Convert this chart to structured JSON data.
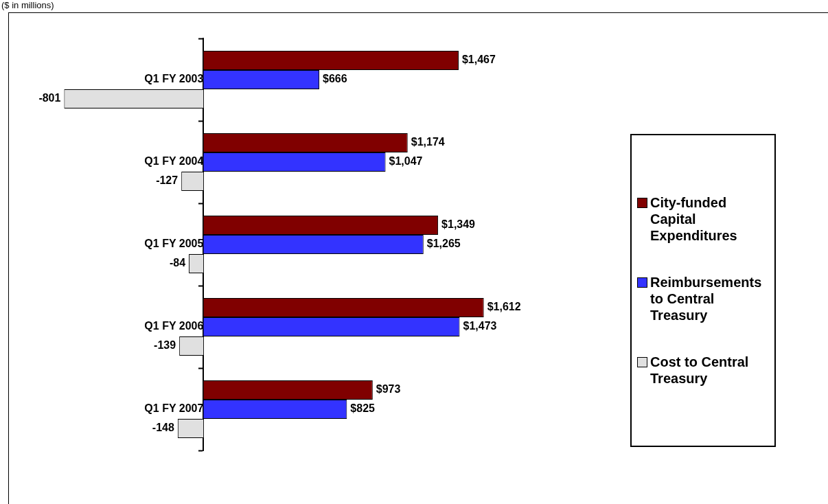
{
  "chart_data": {
    "type": "bar",
    "orientation": "horizontal",
    "title": "($ in millions)",
    "legend": "right",
    "grid": false,
    "categories": [
      "Q1 FY 2003",
      "Q1 FY 2004",
      "Q1 FY 2005",
      "Q1 FY 2006",
      "Q1 FY 2007"
    ],
    "series": [
      {
        "name": "City-funded Capital Expenditures",
        "color": "#800000",
        "values": [
          1467,
          1174,
          1349,
          1612,
          973
        ],
        "value_labels": [
          "$1,467",
          "$1,174",
          "$1,349",
          "$1,612",
          "$973"
        ]
      },
      {
        "name": "Reimbursements to Central Treasury",
        "color": "#3333ff",
        "values": [
          666,
          1047,
          1265,
          1473,
          825
        ],
        "value_labels": [
          "$666",
          "$1,047",
          "$1,265",
          "$1,473",
          "$825"
        ]
      },
      {
        "name": "Cost to Central Treasury",
        "color": "#e0e0e0",
        "values": [
          -801,
          -127,
          -84,
          -139,
          -148
        ],
        "value_labels": [
          "-801",
          "-127",
          "-84",
          "-139",
          "-148"
        ]
      }
    ]
  }
}
